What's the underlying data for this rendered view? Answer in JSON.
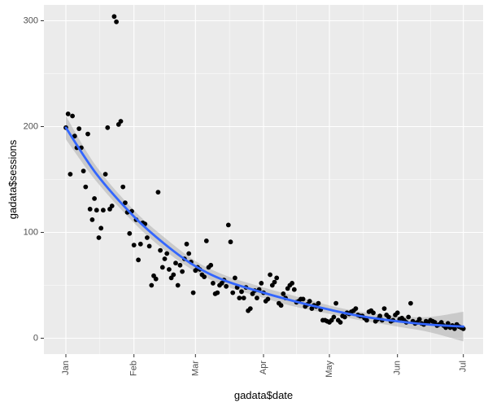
{
  "chart_data": {
    "type": "scatter",
    "xlabel": "gadata$date",
    "ylabel": "gadata$sessions",
    "x_ticks": [
      "Jan",
      "Feb",
      "Mar",
      "Apr",
      "May",
      "Jun",
      "Jul"
    ],
    "x_tick_dates": [
      "2018-01-01",
      "2018-02-01",
      "2018-03-01",
      "2018-04-01",
      "2018-05-01",
      "2018-06-01",
      "2018-07-01"
    ],
    "y_ticks": [
      "0",
      "100",
      "200",
      "300"
    ],
    "xlim": [
      "2017-12-22",
      "2018-07-10"
    ],
    "ylim": [
      -15,
      315
    ],
    "grid": true,
    "colors": {
      "panel": "#ebebeb",
      "grid": "#ffffff",
      "points": "#000000",
      "trend": "#3366ff",
      "band": "#999999"
    },
    "points": [
      [
        "2018-01-01",
        199
      ],
      [
        "2018-01-02",
        212
      ],
      [
        "2018-01-03",
        155
      ],
      [
        "2018-01-04",
        210
      ],
      [
        "2018-01-05",
        191
      ],
      [
        "2018-01-06",
        180
      ],
      [
        "2018-01-07",
        198
      ],
      [
        "2018-01-08",
        180
      ],
      [
        "2018-01-09",
        158
      ],
      [
        "2018-01-10",
        143
      ],
      [
        "2018-01-11",
        193
      ],
      [
        "2018-01-12",
        122
      ],
      [
        "2018-01-13",
        112
      ],
      [
        "2018-01-14",
        132
      ],
      [
        "2018-01-15",
        121
      ],
      [
        "2018-01-16",
        95
      ],
      [
        "2018-01-17",
        104
      ],
      [
        "2018-01-18",
        121
      ],
      [
        "2018-01-19",
        155
      ],
      [
        "2018-01-20",
        199
      ],
      [
        "2018-01-21",
        122
      ],
      [
        "2018-01-22",
        125
      ],
      [
        "2018-01-23",
        304
      ],
      [
        "2018-01-24",
        299
      ],
      [
        "2018-01-25",
        202
      ],
      [
        "2018-01-26",
        205
      ],
      [
        "2018-01-27",
        143
      ],
      [
        "2018-01-28",
        128
      ],
      [
        "2018-01-29",
        119
      ],
      [
        "2018-01-30",
        99
      ],
      [
        "2018-01-31",
        120
      ],
      [
        "2018-02-01",
        88
      ],
      [
        "2018-02-02",
        112
      ],
      [
        "2018-02-03",
        74
      ],
      [
        "2018-02-04",
        89
      ],
      [
        "2018-02-05",
        109
      ],
      [
        "2018-02-06",
        108
      ],
      [
        "2018-02-07",
        95
      ],
      [
        "2018-02-08",
        87
      ],
      [
        "2018-02-09",
        50
      ],
      [
        "2018-02-10",
        59
      ],
      [
        "2018-02-11",
        56
      ],
      [
        "2018-02-12",
        138
      ],
      [
        "2018-02-13",
        83
      ],
      [
        "2018-02-14",
        67
      ],
      [
        "2018-02-15",
        75
      ],
      [
        "2018-02-16",
        80
      ],
      [
        "2018-02-17",
        65
      ],
      [
        "2018-02-18",
        57
      ],
      [
        "2018-02-19",
        60
      ],
      [
        "2018-02-20",
        71
      ],
      [
        "2018-02-21",
        50
      ],
      [
        "2018-02-22",
        69
      ],
      [
        "2018-02-23",
        63
      ],
      [
        "2018-02-24",
        75
      ],
      [
        "2018-02-25",
        89
      ],
      [
        "2018-02-26",
        80
      ],
      [
        "2018-02-27",
        72
      ],
      [
        "2018-02-28",
        43
      ],
      [
        "2018-03-01",
        64
      ],
      [
        "2018-03-02",
        67
      ],
      [
        "2018-03-03",
        65
      ],
      [
        "2018-03-04",
        60
      ],
      [
        "2018-03-05",
        58
      ],
      [
        "2018-03-06",
        92
      ],
      [
        "2018-03-07",
        67
      ],
      [
        "2018-03-08",
        69
      ],
      [
        "2018-03-09",
        52
      ],
      [
        "2018-03-10",
        42
      ],
      [
        "2018-03-11",
        43
      ],
      [
        "2018-03-12",
        50
      ],
      [
        "2018-03-13",
        52
      ],
      [
        "2018-03-14",
        55
      ],
      [
        "2018-03-15",
        49
      ],
      [
        "2018-03-16",
        107
      ],
      [
        "2018-03-17",
        91
      ],
      [
        "2018-03-18",
        43
      ],
      [
        "2018-03-19",
        57
      ],
      [
        "2018-03-20",
        48
      ],
      [
        "2018-03-21",
        38
      ],
      [
        "2018-03-22",
        44
      ],
      [
        "2018-03-23",
        38
      ],
      [
        "2018-03-24",
        48
      ],
      [
        "2018-03-25",
        26
      ],
      [
        "2018-03-26",
        28
      ],
      [
        "2018-03-27",
        42
      ],
      [
        "2018-03-28",
        45
      ],
      [
        "2018-03-29",
        38
      ],
      [
        "2018-03-30",
        46
      ],
      [
        "2018-03-31",
        52
      ],
      [
        "2018-04-01",
        43
      ],
      [
        "2018-04-02",
        35
      ],
      [
        "2018-04-03",
        37
      ],
      [
        "2018-04-04",
        60
      ],
      [
        "2018-04-05",
        50
      ],
      [
        "2018-04-06",
        53
      ],
      [
        "2018-04-07",
        57
      ],
      [
        "2018-04-08",
        33
      ],
      [
        "2018-04-09",
        31
      ],
      [
        "2018-04-10",
        42
      ],
      [
        "2018-04-11",
        38
      ],
      [
        "2018-04-12",
        47
      ],
      [
        "2018-04-13",
        50
      ],
      [
        "2018-04-14",
        52
      ],
      [
        "2018-04-15",
        46
      ],
      [
        "2018-04-16",
        34
      ],
      [
        "2018-04-17",
        35
      ],
      [
        "2018-04-18",
        37
      ],
      [
        "2018-04-19",
        37
      ],
      [
        "2018-04-20",
        30
      ],
      [
        "2018-04-21",
        32
      ],
      [
        "2018-04-22",
        35
      ],
      [
        "2018-04-23",
        28
      ],
      [
        "2018-04-24",
        31
      ],
      [
        "2018-04-25",
        30
      ],
      [
        "2018-04-26",
        33
      ],
      [
        "2018-04-27",
        27
      ],
      [
        "2018-04-28",
        17
      ],
      [
        "2018-04-29",
        17
      ],
      [
        "2018-04-30",
        16
      ],
      [
        "2018-05-01",
        15
      ],
      [
        "2018-05-02",
        17
      ],
      [
        "2018-05-03",
        20
      ],
      [
        "2018-05-04",
        33
      ],
      [
        "2018-05-05",
        17
      ],
      [
        "2018-05-06",
        15
      ],
      [
        "2018-05-07",
        21
      ],
      [
        "2018-05-08",
        20
      ],
      [
        "2018-05-09",
        24
      ],
      [
        "2018-05-10",
        23
      ],
      [
        "2018-05-11",
        25
      ],
      [
        "2018-05-12",
        26
      ],
      [
        "2018-05-13",
        28
      ],
      [
        "2018-05-14",
        22
      ],
      [
        "2018-05-15",
        21
      ],
      [
        "2018-05-16",
        21
      ],
      [
        "2018-05-17",
        19
      ],
      [
        "2018-05-18",
        17
      ],
      [
        "2018-05-19",
        25
      ],
      [
        "2018-05-20",
        26
      ],
      [
        "2018-05-21",
        24
      ],
      [
        "2018-05-22",
        16
      ],
      [
        "2018-05-23",
        18
      ],
      [
        "2018-05-24",
        21
      ],
      [
        "2018-05-25",
        17
      ],
      [
        "2018-05-26",
        28
      ],
      [
        "2018-05-27",
        22
      ],
      [
        "2018-05-28",
        20
      ],
      [
        "2018-05-29",
        16
      ],
      [
        "2018-05-30",
        17
      ],
      [
        "2018-05-31",
        22
      ],
      [
        "2018-06-01",
        24
      ],
      [
        "2018-06-02",
        18
      ],
      [
        "2018-06-03",
        19
      ],
      [
        "2018-06-04",
        17
      ],
      [
        "2018-06-05",
        15
      ],
      [
        "2018-06-06",
        20
      ],
      [
        "2018-06-07",
        33
      ],
      [
        "2018-06-08",
        16
      ],
      [
        "2018-06-09",
        14
      ],
      [
        "2018-06-10",
        15
      ],
      [
        "2018-06-11",
        18
      ],
      [
        "2018-06-12",
        14
      ],
      [
        "2018-06-13",
        13
      ],
      [
        "2018-06-14",
        16
      ],
      [
        "2018-06-15",
        15
      ],
      [
        "2018-06-16",
        17
      ],
      [
        "2018-06-17",
        16
      ],
      [
        "2018-06-18",
        15
      ],
      [
        "2018-06-19",
        12
      ],
      [
        "2018-06-20",
        13
      ],
      [
        "2018-06-21",
        15
      ],
      [
        "2018-06-22",
        12
      ],
      [
        "2018-06-23",
        10
      ],
      [
        "2018-06-24",
        14
      ],
      [
        "2018-06-25",
        10
      ],
      [
        "2018-06-26",
        12
      ],
      [
        "2018-06-27",
        9
      ],
      [
        "2018-06-28",
        13
      ],
      [
        "2018-06-29",
        11
      ],
      [
        "2018-06-30",
        10
      ],
      [
        "2018-07-01",
        9
      ]
    ],
    "trend": {
      "x": [
        "2018-01-01",
        "2018-01-15",
        "2018-02-01",
        "2018-02-15",
        "2018-03-01",
        "2018-03-15",
        "2018-04-01",
        "2018-04-15",
        "2018-05-01",
        "2018-05-15",
        "2018-06-01",
        "2018-06-15",
        "2018-07-01"
      ],
      "fit": [
        199,
        155,
        115,
        89,
        68,
        54,
        43,
        35,
        27,
        21,
        16,
        13,
        11
      ],
      "lower": [
        188,
        148,
        109,
        83,
        63,
        49,
        38,
        30,
        23,
        17,
        11,
        6,
        -3
      ],
      "upper": [
        210,
        162,
        121,
        95,
        73,
        59,
        48,
        40,
        31,
        25,
        21,
        20,
        25
      ]
    }
  }
}
